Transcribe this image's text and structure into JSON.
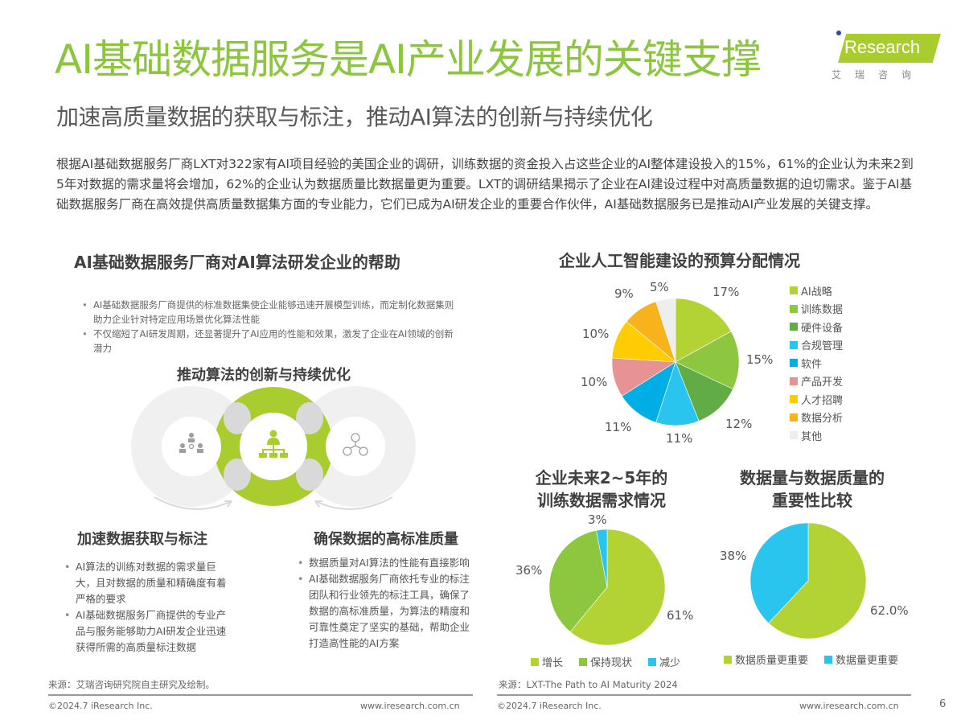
{
  "header": {
    "title": "AI基础数据服务是AI产业发展的关键支撑",
    "subtitle": "加速高质量数据的获取与标注，推动AI算法的创新与持续优化",
    "logo": {
      "brand": "Research",
      "brand_prefix": "i",
      "cn": "艾瑞咨询"
    }
  },
  "intro": "根据AI基础数据服务厂商LXT对322家有AI项目经验的美国企业的调研，训练数据的资金投入占这些企业的AI整体建设投入的15%，61%的企业认为未来2到5年对数据的需求量将会增加，62%的企业认为数据质量比数据量更为重要。LXT的调研结果揭示了企业在AI建设过程中对高质量数据的迫切需求。鉴于AI基础数据服务厂商在高效提供高质量数据集方面的专业能力，它们已成为AI研发企业的重要合作伙伴，AI基础数据服务已是推动AI产业发展的关键支撑。",
  "left_panel": {
    "title": "AI基础数据服务厂商对AI算法研发企业的帮助",
    "top_bullets": [
      "AI基础数据服务厂商提供的标准数据集使企业能够迅速开展模型训练，而定制化数据集则助力企业针对特定应用场景优化算法性能",
      "不仅缩短了AI研发周期，还显著提升了AI应用的性能和效果，激发了企业在AI领域的创新潜力"
    ],
    "center_title": "推动算法的创新与持续优化",
    "diagram": {
      "icons": [
        "team-gear-icon",
        "org-chart-icon",
        "network-people-icon"
      ],
      "colors": {
        "center_ring": "#a9cd2e",
        "side_ring": "#f0f0f0",
        "joint": "#d9d9d9",
        "icon_grey": "#9e9e9e",
        "icon_green": "#a9cd2e"
      }
    },
    "left_block": {
      "title": "加速数据获取与标注",
      "bullets": [
        "AI算法的训练对数据的需求量巨大，且对数据的质量和精确度有着严格的要求",
        "AI基础数据服务厂商提供的专业产品与服务能够助力AI研发企业迅速获得所需的高质量标注数据"
      ]
    },
    "right_block": {
      "title": "确保数据的高标准质量",
      "bullets": [
        "数据质量对AI算法的性能有直接影响",
        "AI基础数据服务厂商依托专业的标注团队和行业领先的标注工具，确保了数据的高标准质量，为算法的精度和可靠性奠定了坚实的基础，帮助企业打造高性能的AI方案"
      ]
    },
    "source": "来源：艾瑞咨询研究院自主研究及绘制。"
  },
  "chart_data": [
    {
      "type": "pie",
      "title": "企业人工智能建设的预算分配情况",
      "categories": [
        "AI战略",
        "训练数据",
        "硬件设备",
        "合规管理",
        "软件",
        "产品开发",
        "人才招聘",
        "数据分析",
        "其他"
      ],
      "values": [
        17,
        15,
        12,
        11,
        11,
        10,
        10,
        9,
        5
      ],
      "labels": [
        "17%",
        "15%",
        "12%",
        "11%",
        "11%",
        "10%",
        "10%",
        "9%",
        "5%"
      ],
      "colors": [
        "#b3d233",
        "#8dc63f",
        "#62ac46",
        "#29c5ef",
        "#00aee6",
        "#e89393",
        "#ffcc00",
        "#f7b21c",
        "#eeeeee"
      ],
      "legend_position": "right"
    },
    {
      "type": "pie",
      "title": "企业未来2~5年的训练数据需求情况",
      "categories": [
        "增长",
        "保持现状",
        "减少"
      ],
      "values": [
        61,
        36,
        3
      ],
      "labels": [
        "61%",
        "36%",
        "3%"
      ],
      "colors": [
        "#b3d233",
        "#8dc63f",
        "#29c5ef"
      ],
      "legend_position": "bottom"
    },
    {
      "type": "pie",
      "title": "数据量与数据质量的重要性比较",
      "categories": [
        "数据质量更重要",
        "数据量更重要"
      ],
      "values": [
        62,
        38
      ],
      "labels": [
        "62.0%",
        "38%"
      ],
      "colors": [
        "#b3d233",
        "#29c5ef"
      ],
      "legend_position": "bottom"
    }
  ],
  "right_panel": {
    "chart1_title": "企业人工智能建设的预算分配情况",
    "chart2_title_line1": "企业未来2~5年的",
    "chart2_title_line2": "训练数据需求情况",
    "chart3_title_line1": "数据量与数据质量的",
    "chart3_title_line2": "重要性比较",
    "source": "来源：LXT-The Path to AI Maturity 2024"
  },
  "footer": {
    "copyright": "©2024.7 iResearch Inc.",
    "url": "www.iresearch.com.cn",
    "page_number": "6"
  }
}
